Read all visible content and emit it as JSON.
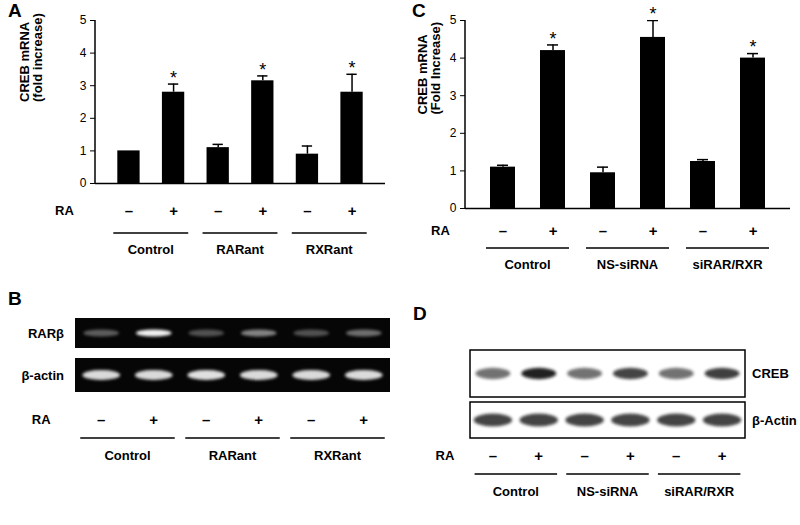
{
  "chart_data": [
    {
      "panel": "A",
      "type": "bar",
      "y_label": "CREB mRNA\n(fold increase)",
      "x_label": "RA",
      "categories": [
        "–",
        "+",
        "–",
        "+",
        "–",
        "+"
      ],
      "groups": [
        "Control",
        "RARant",
        "RXRant"
      ],
      "values": [
        1.0,
        2.8,
        1.1,
        3.15,
        0.9,
        2.8
      ],
      "errors": [
        0,
        0.25,
        0.1,
        0.15,
        0.25,
        0.55
      ],
      "significant": [
        false,
        true,
        false,
        true,
        false,
        true
      ],
      "significance_mark": "*",
      "color": "#000000",
      "ylim": [
        0,
        5
      ],
      "yticks": [
        0,
        1,
        2,
        3,
        4,
        5
      ]
    },
    {
      "panel": "C",
      "type": "bar",
      "y_label": "CREB mRNA\n(Fold Increase)",
      "x_label": "RA",
      "categories": [
        "–",
        "+",
        "–",
        "+",
        "–",
        "+"
      ],
      "groups": [
        "Control",
        "NS-siRNA",
        "siRAR/RXR"
      ],
      "values": [
        1.1,
        4.2,
        0.95,
        4.55,
        1.25,
        4.0
      ],
      "errors": [
        0.05,
        0.15,
        0.15,
        0.45,
        0.05,
        0.12
      ],
      "significant": [
        false,
        true,
        false,
        true,
        false,
        true
      ],
      "significance_mark": "*",
      "color": "#000000",
      "ylim": [
        0,
        5
      ],
      "yticks": [
        0,
        1,
        2,
        3,
        4,
        5
      ]
    }
  ],
  "blots": [
    {
      "panel": "B",
      "type": "gel",
      "x_label": "RA",
      "lane_labels": [
        "–",
        "+",
        "–",
        "+",
        "–",
        "+"
      ],
      "groups": [
        "Control",
        "RARant",
        "RXRant"
      ],
      "rows": [
        {
          "label": "RARβ",
          "intensities": [
            0.35,
            0.95,
            0.3,
            0.5,
            0.3,
            0.42
          ]
        },
        {
          "label": "β-actin",
          "intensities": [
            0.85,
            0.85,
            0.88,
            0.85,
            0.85,
            0.86
          ]
        }
      ]
    },
    {
      "panel": "D",
      "type": "western_blot",
      "x_label": "RA",
      "lane_labels": [
        "–",
        "+",
        "–",
        "+",
        "–",
        "+"
      ],
      "groups": [
        "Control",
        "NS-siRNA",
        "siRAR/RXR"
      ],
      "rows": [
        {
          "label": "CREB",
          "intensities": [
            0.6,
            0.95,
            0.6,
            0.8,
            0.6,
            0.82
          ]
        },
        {
          "label": "β-Actin",
          "intensities": [
            0.8,
            0.8,
            0.8,
            0.8,
            0.8,
            0.8
          ]
        }
      ]
    }
  ]
}
